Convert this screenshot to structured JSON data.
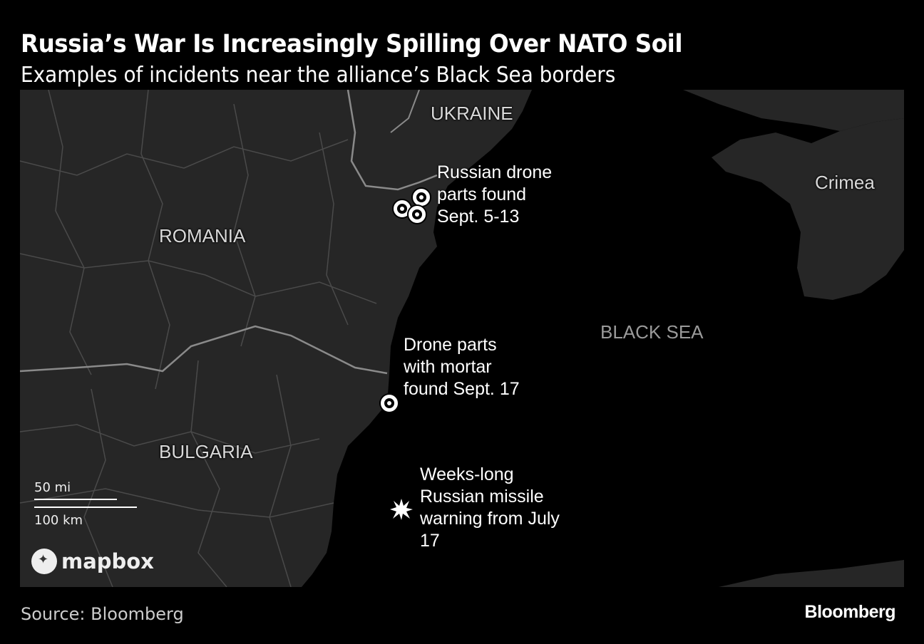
{
  "header": {
    "title": "Russia’s War Is Increasingly Spilling Over NATO Soil",
    "subtitle": "Examples of incidents near the alliance’s Black Sea borders"
  },
  "map": {
    "colors": {
      "land": "#262626",
      "sea": "#000000",
      "border": "#555555",
      "national_border": "#8a8a8a",
      "marker": "#ffffff"
    },
    "labels": {
      "ukraine": "UKRAINE",
      "romania": "ROMANIA",
      "bulgaria": "BULGARIA",
      "crimea": "Crimea",
      "black_sea": "BLACK SEA"
    },
    "annotations": [
      {
        "text": "Russian drone parts found Sept. 5-13",
        "lines": [
          "Russian drone",
          "parts found",
          "Sept. 5-13"
        ],
        "icon": "circle-marker",
        "count": 3
      },
      {
        "text": "Drone parts with mortar found Sept. 17",
        "lines": [
          "Drone parts",
          "with mortar",
          "found Sept. 17"
        ],
        "icon": "circle-marker",
        "count": 1
      },
      {
        "text": "Weeks-long Russian missile warning from July 17",
        "lines": [
          "Weeks-long",
          "Russian missile",
          "warning from July",
          "17"
        ],
        "icon": "explosion-icon",
        "count": 1
      }
    ],
    "scale": {
      "miles": "50 mi",
      "km": "100 km"
    },
    "attribution": "mapbox"
  },
  "footer": {
    "source": "Source: Bloomberg",
    "brand": "Bloomberg"
  }
}
